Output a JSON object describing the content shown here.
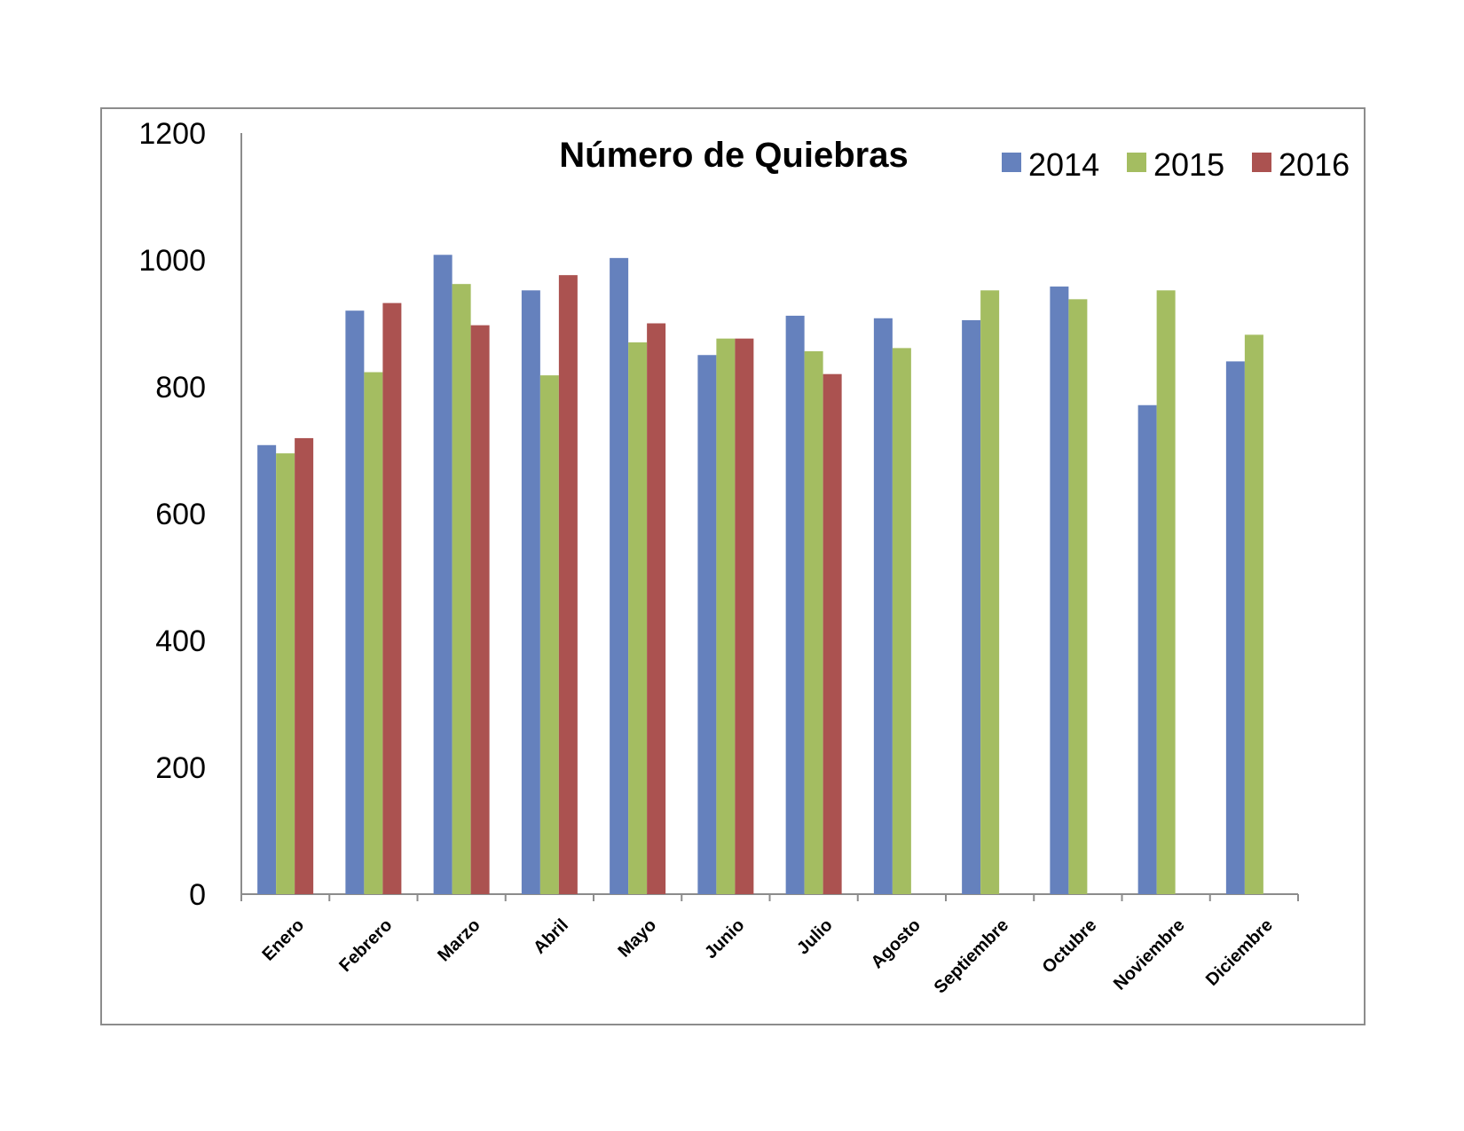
{
  "chart_data": {
    "type": "bar",
    "title": "Número de Quiebras",
    "xlabel": "",
    "ylabel": "",
    "ylim": [
      0,
      1200
    ],
    "yticks": [
      0,
      200,
      400,
      600,
      800,
      1000,
      1200
    ],
    "grid": false,
    "legend_position": "top-right",
    "categories": [
      "Enero",
      "Febrero",
      "Marzo",
      "Abril",
      "Mayo",
      "Junio",
      "Julio",
      "Agosto",
      "Septiembre",
      "Octubre",
      "Noviembre",
      "Diciembre"
    ],
    "series": [
      {
        "name": "2014",
        "color": "#6581bd",
        "values": [
          708,
          920,
          1008,
          952,
          1003,
          850,
          912,
          908,
          905,
          958,
          771,
          840
        ]
      },
      {
        "name": "2015",
        "color": "#a4bd61",
        "values": [
          695,
          823,
          962,
          818,
          870,
          876,
          856,
          861,
          952,
          938,
          952,
          882
        ]
      },
      {
        "name": "2016",
        "color": "#ab5250",
        "values": [
          719,
          932,
          897,
          976,
          900,
          876,
          820,
          null,
          null,
          null,
          null,
          null
        ]
      }
    ]
  }
}
